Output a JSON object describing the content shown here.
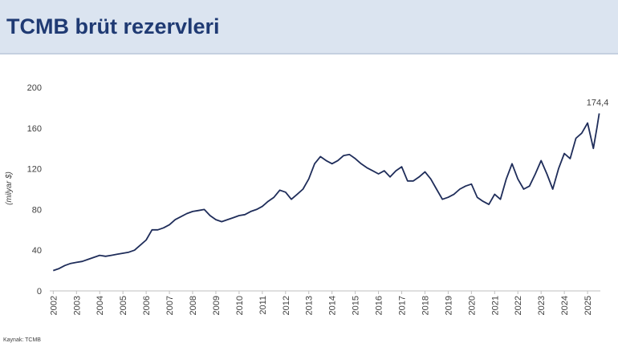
{
  "chart_data": {
    "type": "line",
    "title": "TCMB brüt rezervleri",
    "y_label": "(milyar $)",
    "source": "Kaynak: TCMB",
    "xlim": [
      2001.85,
      2025.55
    ],
    "xticks": [
      2002,
      2003,
      2004,
      2005,
      2006,
      2007,
      2008,
      2009,
      2010,
      2011,
      2012,
      2013,
      2014,
      2015,
      2016,
      2017,
      2018,
      2019,
      2020,
      2021,
      2022,
      2023,
      2024,
      2025
    ],
    "ylim": [
      0,
      200
    ],
    "yticks": [
      0,
      40,
      80,
      120,
      160,
      200
    ],
    "grid": false,
    "x": [
      2002,
      2002.25,
      2002.5,
      2002.75,
      2003,
      2003.25,
      2003.5,
      2003.75,
      2004,
      2004.25,
      2004.5,
      2004.75,
      2005,
      2005.25,
      2005.5,
      2005.75,
      2006,
      2006.25,
      2006.5,
      2006.75,
      2007,
      2007.25,
      2007.5,
      2007.75,
      2008,
      2008.25,
      2008.5,
      2008.75,
      2009,
      2009.25,
      2009.5,
      2009.75,
      2010,
      2010.25,
      2010.5,
      2010.75,
      2011,
      2011.25,
      2011.5,
      2011.75,
      2012,
      2012.25,
      2012.5,
      2012.75,
      2013,
      2013.25,
      2013.5,
      2013.75,
      2014,
      2014.25,
      2014.5,
      2014.75,
      2015,
      2015.25,
      2015.5,
      2015.75,
      2016,
      2016.25,
      2016.5,
      2016.75,
      2017,
      2017.25,
      2017.5,
      2017.75,
      2018,
      2018.25,
      2018.5,
      2018.75,
      2019,
      2019.25,
      2019.5,
      2019.75,
      2020,
      2020.25,
      2020.5,
      2020.75,
      2021,
      2021.25,
      2021.5,
      2021.75,
      2022,
      2022.25,
      2022.5,
      2022.75,
      2023,
      2023.25,
      2023.5,
      2023.75,
      2024,
      2024.25,
      2024.5,
      2024.75,
      2025,
      2025.25,
      2025.4,
      2025.5
    ],
    "series": [
      {
        "name": "TCMB brüt rezervleri",
        "color": "#1f2d5a",
        "values": [
          20,
          22,
          25,
          27,
          28,
          29,
          31,
          33,
          35,
          34,
          35,
          36,
          37,
          38,
          40,
          45,
          50,
          60,
          60,
          62,
          65,
          70,
          73,
          76,
          78,
          79,
          80,
          74,
          70,
          68,
          70,
          72,
          74,
          75,
          78,
          80,
          83,
          88,
          92,
          99,
          97,
          90,
          95,
          100,
          110,
          125,
          132,
          128,
          125,
          128,
          133,
          134,
          130,
          125,
          121,
          118,
          115,
          118,
          112,
          118,
          122,
          108,
          108,
          112,
          117,
          110,
          100,
          90,
          92,
          95,
          100,
          103,
          105,
          92,
          88,
          85,
          95,
          90,
          110,
          125,
          110,
          100,
          103,
          115,
          128,
          115,
          100,
          120,
          135,
          130,
          150,
          155,
          165,
          140,
          160,
          174.4
        ],
        "value_labels": [
          null,
          null,
          null,
          null,
          null,
          null,
          null,
          null,
          null,
          null,
          null,
          null,
          null,
          null,
          null,
          null,
          null,
          null,
          null,
          null,
          null,
          null,
          null,
          null,
          null,
          null,
          null,
          null,
          null,
          null,
          null,
          null,
          null,
          null,
          null,
          null,
          null,
          null,
          null,
          null,
          null,
          null,
          null,
          null,
          null,
          null,
          null,
          null,
          null,
          null,
          null,
          null,
          null,
          null,
          null,
          null,
          null,
          null,
          null,
          null,
          null,
          null,
          null,
          null,
          null,
          null,
          null,
          null,
          null,
          null,
          null,
          null,
          null,
          null,
          null,
          null,
          null,
          null,
          null,
          null,
          null,
          null,
          null,
          null,
          null,
          null,
          null,
          null,
          null,
          null,
          null,
          null,
          null,
          null,
          null,
          "174,4"
        ]
      }
    ]
  }
}
